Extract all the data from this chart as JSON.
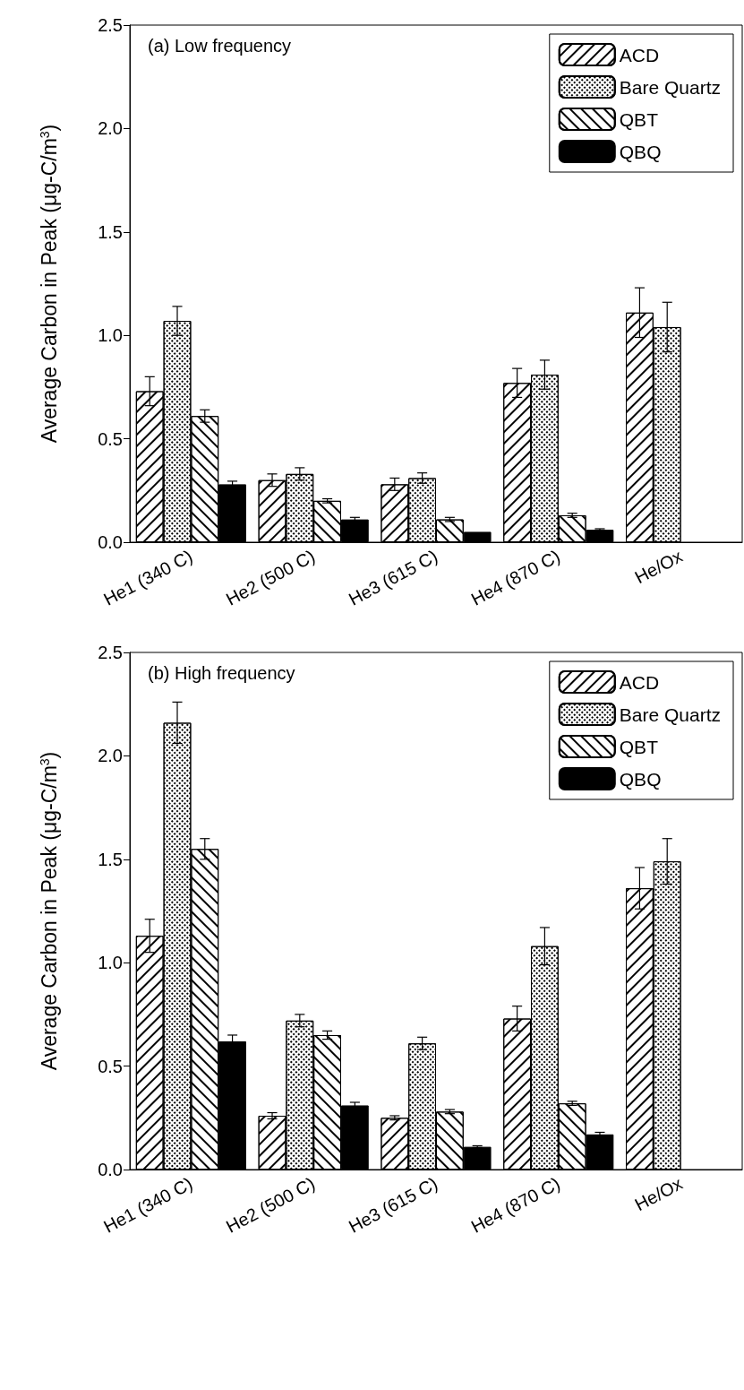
{
  "chart_data": [
    {
      "type": "bar",
      "title": "(a) Low frequency",
      "ylabel": "Average Carbon in Peak (μg-C/m$^{3}$)",
      "categories": [
        "He1 (340 C)",
        "He2 (500 C)",
        "He3 (615 C)",
        "He4 (870 C)",
        "He/Ox"
      ],
      "series": [
        {
          "name": "ACD",
          "color": "#ffffff",
          "values": [
            0.73,
            0.3,
            0.28,
            0.77,
            1.11
          ],
          "errors": [
            0.07,
            0.03,
            0.03,
            0.07,
            0.12
          ]
        },
        {
          "name": "Bare Quartz",
          "color": "#ffffff",
          "values": [
            1.07,
            0.33,
            0.31,
            0.81,
            1.04
          ],
          "errors": [
            0.07,
            0.03,
            0.025,
            0.07,
            0.12
          ]
        },
        {
          "name": "QBT",
          "color": "#ffffff",
          "values": [
            0.61,
            0.2,
            0.11,
            0.13,
            null
          ],
          "errors": [
            0.03,
            0.01,
            0.01,
            0.01,
            null
          ]
        },
        {
          "name": "QBQ",
          "color": "#000000",
          "values": [
            0.28,
            0.11,
            0.05,
            0.06,
            null
          ],
          "errors": [
            0.015,
            0.01,
            null,
            0.005,
            null
          ]
        }
      ],
      "ylim": [
        0,
        2.5
      ],
      "yticks": [
        {
          "value": 0,
          "label": "0.0"
        },
        0.5,
        {
          "value": 1,
          "label": "1.0"
        },
        1.5,
        {
          "value": 2,
          "label": "2.0"
        },
        2.5
      ],
      "grid": false,
      "legend": "top right"
    },
    {
      "type": "bar",
      "title": "(b) High frequency",
      "ylabel": "Average Carbon in Peak (μg-C/m$^{3}$)",
      "categories": [
        "He1 (340 C)",
        "He2 (500 C)",
        "He3 (615 C)",
        "He4 (870 C)",
        "He/Ox"
      ],
      "series": [
        {
          "name": "ACD",
          "color": "#ffffff",
          "values": [
            1.13,
            0.26,
            0.25,
            0.73,
            1.36
          ],
          "errors": [
            0.08,
            0.015,
            0.01,
            0.06,
            0.1
          ]
        },
        {
          "name": "Bare Quartz",
          "color": "#ffffff",
          "values": [
            2.16,
            0.72,
            0.61,
            1.08,
            1.49
          ],
          "errors": [
            0.1,
            0.03,
            0.03,
            0.09,
            0.11
          ]
        },
        {
          "name": "QBT",
          "color": "#ffffff",
          "values": [
            1.55,
            0.65,
            0.28,
            0.32,
            null
          ],
          "errors": [
            0.05,
            0.02,
            0.01,
            0.01,
            null
          ]
        },
        {
          "name": "QBQ",
          "color": "#000000",
          "values": [
            0.62,
            0.31,
            0.11,
            0.17,
            null
          ],
          "errors": [
            0.03,
            0.015,
            0.005,
            0.01,
            null
          ]
        }
      ],
      "ylim": [
        0,
        2.5
      ],
      "yticks": [
        {
          "value": 0,
          "label": "0.0"
        },
        0.5,
        {
          "value": 1,
          "label": "1.0"
        },
        1.5,
        {
          "value": 2,
          "label": "2.0"
        },
        2.5
      ],
      "grid": false,
      "legend": "top right"
    }
  ]
}
